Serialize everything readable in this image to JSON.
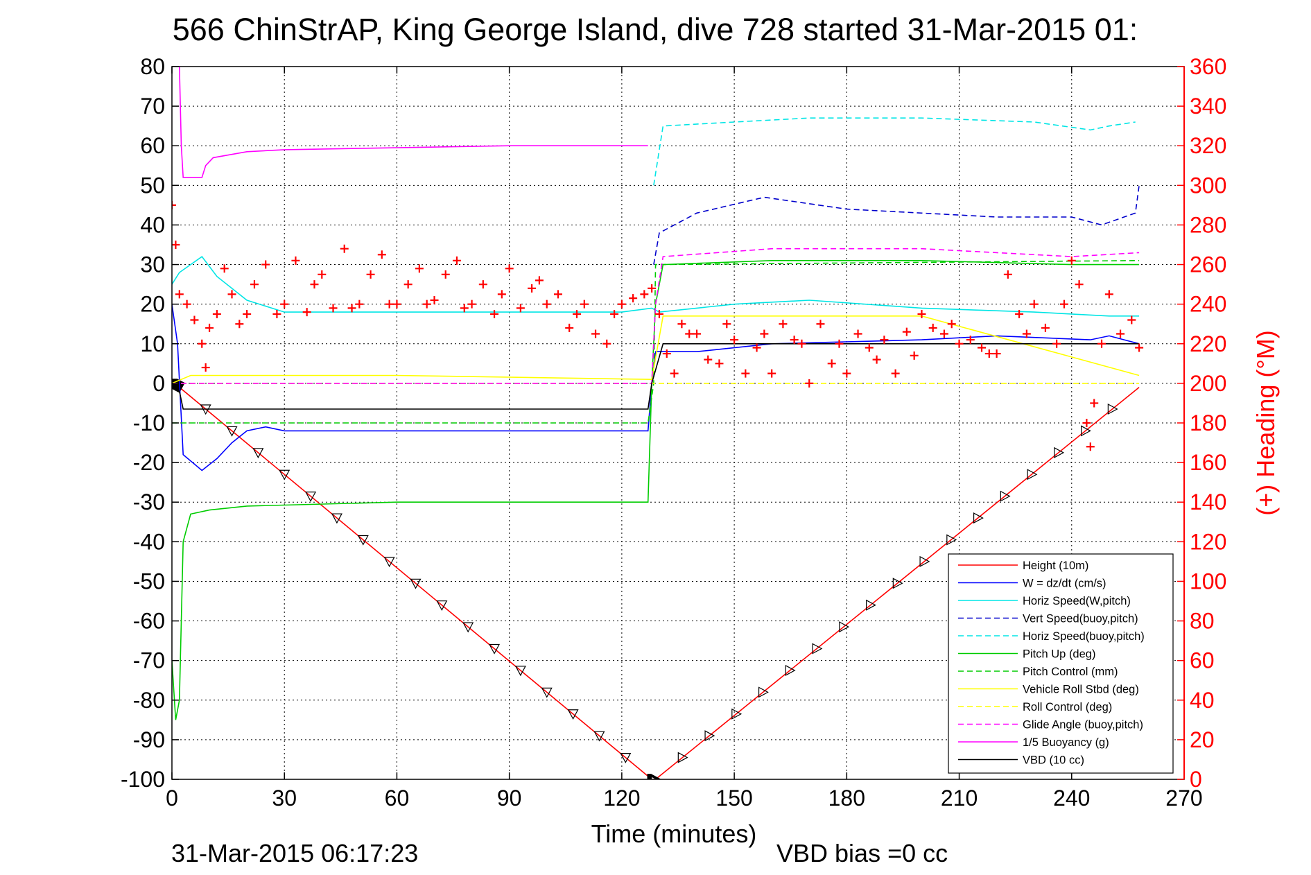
{
  "chart_data": {
    "type": "line",
    "title": "566 ChinStrAP, King George Island, dive 728 started 31-Mar-2015 01:",
    "xlabel": "Time (minutes)",
    "ylabel_right": "(+) Heading (°M)",
    "xlim": [
      0,
      270
    ],
    "ylim": [
      -100,
      80
    ],
    "ylim_right": [
      0,
      360
    ],
    "x_ticks": [
      "0",
      "30",
      "60",
      "90",
      "120",
      "150",
      "180",
      "210",
      "240",
      "270"
    ],
    "y_ticks": [
      "80",
      "70",
      "60",
      "50",
      "40",
      "30",
      "20",
      "10",
      "0",
      "-10",
      "-20",
      "-30",
      "-40",
      "-50",
      "-60",
      "-70",
      "-80",
      "-90",
      "-100"
    ],
    "y_ticks_right": [
      "360",
      "340",
      "320",
      "300",
      "280",
      "260",
      "240",
      "220",
      "200",
      "180",
      "160",
      "140",
      "120",
      "100",
      "80",
      "60",
      "40",
      "20",
      "0"
    ],
    "grid": true,
    "legend_position": "bottom-right",
    "footer_timestamp": "31-Mar-2015 06:17:23",
    "footer_note": "VBD bias =0 cc",
    "series": [
      {
        "name": "Height (10m)",
        "color": "#ff0000",
        "style": "solid",
        "x": [
          0,
          2,
          128,
          129,
          258
        ],
        "y": [
          0,
          -1,
          -100,
          -100,
          -1
        ]
      },
      {
        "name": "W = dz/dt (cm/s)",
        "color": "#0000ff",
        "style": "solid",
        "x": [
          0,
          1.5,
          3,
          8,
          12,
          16,
          20,
          25,
          30,
          60,
          90,
          120,
          127,
          128,
          129,
          131,
          140,
          160,
          200,
          220,
          245,
          250,
          258
        ],
        "y": [
          20,
          10,
          -18,
          -22,
          -19,
          -15,
          -12,
          -11,
          -12,
          -12,
          -12,
          -12,
          -12,
          0,
          8,
          8,
          8,
          10,
          11,
          12,
          11,
          12,
          10
        ]
      },
      {
        "name": "Horiz Speed(W,pitch)",
        "color": "#00e5e5",
        "style": "solid",
        "x": [
          0,
          2,
          8,
          12,
          20,
          30,
          60,
          90,
          120,
          128,
          130,
          150,
          170,
          200,
          230,
          250,
          258
        ],
        "y": [
          25,
          28,
          32,
          27,
          21,
          18,
          18,
          18,
          18,
          19,
          18,
          20,
          21,
          19,
          18,
          17,
          17
        ]
      },
      {
        "name": "Vert Speed(buoy,pitch)",
        "color": "#0000cc",
        "style": "dashed",
        "x": [
          128.5,
          130,
          140,
          158,
          180,
          200,
          220,
          240,
          248,
          257,
          258
        ],
        "y": [
          30,
          38,
          43,
          47,
          44,
          43,
          42,
          42,
          40,
          43,
          50
        ]
      },
      {
        "name": "Horiz Speed(buoy,pitch)",
        "color": "#00e5e5",
        "style": "dashed",
        "x": [
          128.5,
          131,
          150,
          170,
          200,
          230,
          245,
          250,
          257
        ],
        "y": [
          50,
          65,
          66,
          67,
          67,
          66,
          64,
          65,
          66
        ]
      },
      {
        "name": "Pitch Up (deg)",
        "color": "#00cc00",
        "style": "solid",
        "x": [
          0,
          1,
          2,
          3,
          5,
          10,
          20,
          60,
          90,
          127,
          128,
          129,
          131,
          160,
          200,
          240,
          258
        ],
        "y": [
          -70,
          -85,
          -80,
          -40,
          -33,
          -32,
          -31,
          -30,
          -30,
          -30,
          0,
          20,
          30,
          31,
          31,
          30,
          30
        ]
      },
      {
        "name": "Pitch Control (mm)",
        "color": "#00cc00",
        "style": "dashed",
        "x": [
          0,
          2,
          127,
          128.5,
          129,
          258
        ],
        "y": [
          -10,
          -10,
          -10,
          0,
          30,
          31
        ]
      },
      {
        "name": "Vehicle Roll Stbd (deg)",
        "color": "#ffff00",
        "style": "solid",
        "x": [
          0,
          5,
          60,
          128,
          131,
          200,
          258
        ],
        "y": [
          0,
          2,
          2,
          1,
          17,
          17,
          2
        ]
      },
      {
        "name": "Roll Control (deg)",
        "color": "#ffff00",
        "style": "dashed",
        "x": [
          0,
          128,
          130,
          258
        ],
        "y": [
          0,
          0,
          0,
          0
        ]
      },
      {
        "name": "Glide Angle (buoy,pitch)",
        "color": "#ff00ff",
        "style": "dashed",
        "x": [
          0,
          128,
          129,
          131,
          160,
          200,
          240,
          258
        ],
        "y": [
          0,
          0,
          20,
          32,
          34,
          34,
          32,
          33
        ]
      },
      {
        "name": "1/5 Buoyancy (g)",
        "color": "#ff00ff",
        "style": "solid",
        "x": [
          2,
          2.5,
          3,
          8,
          9,
          11,
          20,
          30,
          60,
          90,
          120,
          127
        ],
        "y": [
          80,
          60,
          52,
          52,
          55,
          57,
          58.5,
          59,
          59.5,
          60,
          60,
          60
        ]
      },
      {
        "name": "VBD (10 cc)",
        "color": "#000000",
        "style": "solid",
        "x": [
          0,
          2,
          3,
          127,
          128,
          131,
          258
        ],
        "y": [
          0,
          -2,
          -6.5,
          -6.5,
          0,
          10,
          10
        ]
      },
      {
        "name": "Heading",
        "color": "#ff0000",
        "style": "markers",
        "axis": "right",
        "x": [
          0,
          1,
          2,
          4,
          6,
          8,
          9,
          10,
          12,
          14,
          16,
          18,
          20,
          22,
          25,
          28,
          30,
          33,
          36,
          38,
          40,
          43,
          46,
          48,
          50,
          53,
          56,
          58,
          60,
          63,
          66,
          68,
          70,
          73,
          76,
          78,
          80,
          83,
          86,
          88,
          90,
          93,
          96,
          98,
          100,
          103,
          106,
          108,
          110,
          113,
          116,
          118,
          120,
          123,
          126,
          128,
          130,
          132,
          134,
          136,
          138,
          140,
          143,
          146,
          148,
          150,
          153,
          156,
          158,
          160,
          163,
          166,
          168,
          170,
          173,
          176,
          178,
          180,
          183,
          186,
          188,
          190,
          193,
          196,
          198,
          200,
          203,
          206,
          208,
          210,
          213,
          216,
          218,
          220,
          223,
          226,
          228,
          230,
          233,
          236,
          238,
          240,
          242,
          244,
          245,
          246,
          248,
          250,
          253,
          256,
          258
        ],
        "y": [
          290,
          270,
          245,
          240,
          232,
          220,
          208,
          228,
          235,
          258,
          245,
          230,
          235,
          250,
          260,
          235,
          240,
          262,
          236,
          250,
          255,
          238,
          268,
          238,
          240,
          255,
          265,
          240,
          240,
          250,
          258,
          240,
          242,
          255,
          262,
          238,
          240,
          250,
          235,
          245,
          258,
          238,
          248,
          252,
          240,
          245,
          228,
          235,
          240,
          225,
          220,
          235,
          240,
          243,
          245,
          248,
          235,
          215,
          205,
          230,
          225,
          225,
          212,
          210,
          230,
          222,
          205,
          218,
          225,
          205,
          230,
          222,
          220,
          200,
          230,
          210,
          220,
          205,
          225,
          218,
          212,
          222,
          205,
          226,
          214,
          235,
          228,
          225,
          230,
          220,
          222,
          218,
          215,
          215,
          255,
          235,
          225,
          240,
          228,
          220,
          240,
          262,
          250,
          180,
          168,
          190,
          220,
          245,
          225,
          232,
          218
        ]
      }
    ]
  }
}
